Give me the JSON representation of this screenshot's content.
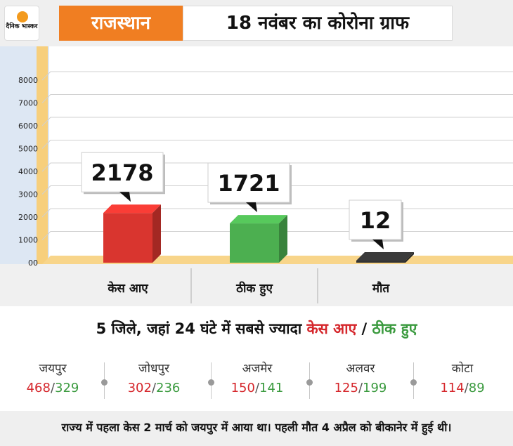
{
  "header": {
    "logo_text": "दैनिक भास्कर",
    "state": "राजस्थान",
    "title": "18 नवंबर का कोरोना ग्राफ"
  },
  "chart_data": {
    "type": "bar",
    "categories": [
      "केस आए",
      "ठीक हुए",
      "मौत"
    ],
    "values": [
      2178,
      1721,
      12
    ],
    "value_labels": [
      "2178",
      "1721",
      "12"
    ],
    "colors": [
      "#d9352f",
      "#4caf50",
      "#333333"
    ],
    "yticks": [
      0,
      1000,
      2000,
      3000,
      4000,
      5000,
      6000,
      7000,
      8000
    ],
    "ytick_labels": [
      "00",
      "1000",
      "2000",
      "3000",
      "4000",
      "5000",
      "6000",
      "7000",
      "8000"
    ],
    "ylim": [
      0,
      8000
    ],
    "grid": true
  },
  "districts_section": {
    "subtitle_lead": "5 जिले, जहां 24 घंटे में सबसे ज्यादा ",
    "subtitle_cases": "केस आए",
    "subtitle_sep": " / ",
    "subtitle_recovered": "ठीक हुए",
    "items": [
      {
        "name": "जयपुर",
        "cases": "468",
        "recovered": "329"
      },
      {
        "name": "जोधपुर",
        "cases": "302",
        "recovered": "236"
      },
      {
        "name": "अजमेर",
        "cases": "150",
        "recovered": "141"
      },
      {
        "name": "अलवर",
        "cases": "125",
        "recovered": "199"
      },
      {
        "name": "कोटा",
        "cases": "114",
        "recovered": "89"
      }
    ]
  },
  "footer": {
    "note": "राज्य में पहला केस 2 मार्च को जयपुर में आया था। पहली मौत 4 अप्रैल को बीकानेर में हुई थी।"
  }
}
